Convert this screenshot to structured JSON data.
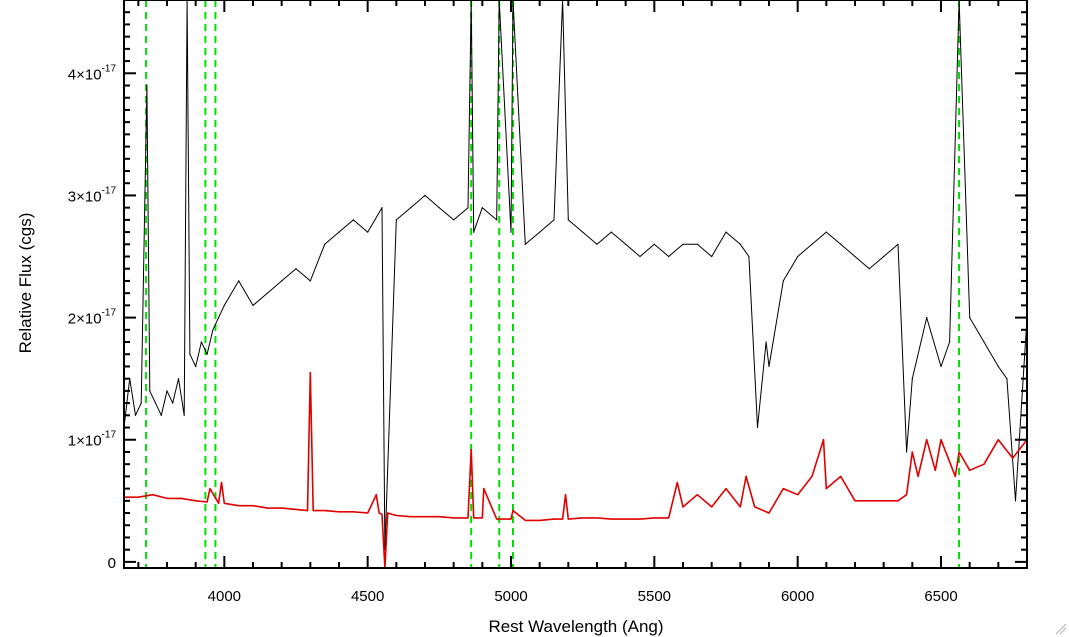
{
  "chart_data": {
    "type": "line",
    "xlabel": "Rest Wavelength (Ang)",
    "ylabel": "Relative Flux (cgs)",
    "xlim": [
      3650,
      6800
    ],
    "ylim": [
      -5e-19,
      4.6e-17
    ],
    "grid": false,
    "x_ticks": [
      {
        "value": 4000,
        "label": "4000"
      },
      {
        "value": 4500,
        "label": "4500"
      },
      {
        "value": 5000,
        "label": "5000"
      },
      {
        "value": 5500,
        "label": "5500"
      },
      {
        "value": 6000,
        "label": "6000"
      },
      {
        "value": 6500,
        "label": "6500"
      }
    ],
    "y_ticks": [
      {
        "value": 0,
        "label": "0",
        "exp": ""
      },
      {
        "value": 1e-17,
        "label": "1×10",
        "exp": "-17"
      },
      {
        "value": 2e-17,
        "label": "2×10",
        "exp": "-17"
      },
      {
        "value": 3e-17,
        "label": "3×10",
        "exp": "-17"
      },
      {
        "value": 4e-17,
        "label": "4×10",
        "exp": "-17"
      }
    ],
    "vertical_lines": [
      {
        "x": 3727,
        "color": "#00e000",
        "style": "dashed"
      },
      {
        "x": 3934,
        "color": "#00e000",
        "style": "dashed"
      },
      {
        "x": 3969,
        "color": "#00e000",
        "style": "dashed"
      },
      {
        "x": 4861,
        "color": "#00e000",
        "style": "dashed"
      },
      {
        "x": 4959,
        "color": "#00e000",
        "style": "dashed"
      },
      {
        "x": 5007,
        "color": "#00e000",
        "style": "dashed"
      },
      {
        "x": 6563,
        "color": "#00e000",
        "style": "dashed"
      }
    ],
    "series": [
      {
        "color": "#000000",
        "x": [
          3650,
          3670,
          3690,
          3710,
          3730,
          3740,
          3760,
          3780,
          3800,
          3820,
          3840,
          3860,
          3870,
          3880,
          3900,
          3920,
          3940,
          3960,
          3980,
          4000,
          4050,
          4100,
          4150,
          4200,
          4250,
          4300,
          4350,
          4400,
          4450,
          4500,
          4550,
          4560,
          4600,
          4650,
          4700,
          4750,
          4800,
          4850,
          4861,
          4870,
          4900,
          4950,
          4959,
          5000,
          5007,
          5050,
          5100,
          5150,
          5180,
          5200,
          5250,
          5300,
          5350,
          5400,
          5450,
          5500,
          5550,
          5600,
          5650,
          5700,
          5750,
          5800,
          5830,
          5860,
          5890,
          5900,
          5950,
          6000,
          6050,
          6100,
          6150,
          6200,
          6250,
          6300,
          6350,
          6380,
          6400,
          6450,
          6500,
          6530,
          6563,
          6600,
          6650,
          6700,
          6730,
          6760,
          6800
        ],
        "y": [
          1.1e-17,
          1.5e-17,
          1.2e-17,
          1.3e-17,
          3.9e-17,
          1.4e-17,
          1.3e-17,
          1.2e-17,
          1.4e-17,
          1.3e-17,
          1.5e-17,
          1.2e-17,
          4.6e-17,
          1.7e-17,
          1.6e-17,
          1.8e-17,
          1.7e-17,
          1.9e-17,
          2e-17,
          2.1e-17,
          2.3e-17,
          2.1e-17,
          2.2e-17,
          2.3e-17,
          2.4e-17,
          2.3e-17,
          2.6e-17,
          2.7e-17,
          2.8e-17,
          2.7e-17,
          2.9e-17,
          1e-18,
          2.8e-17,
          2.9e-17,
          3e-17,
          2.9e-17,
          2.8e-17,
          2.9e-17,
          4.6e-17,
          2.7e-17,
          2.9e-17,
          2.8e-17,
          4.6e-17,
          2.7e-17,
          4.6e-17,
          2.6e-17,
          2.7e-17,
          2.8e-17,
          4.6e-17,
          2.8e-17,
          2.7e-17,
          2.6e-17,
          2.7e-17,
          2.6e-17,
          2.5e-17,
          2.6e-17,
          2.5e-17,
          2.6e-17,
          2.6e-17,
          2.5e-17,
          2.7e-17,
          2.6e-17,
          2.5e-17,
          1.1e-17,
          1.8e-17,
          1.6e-17,
          2.3e-17,
          2.5e-17,
          2.6e-17,
          2.7e-17,
          2.6e-17,
          2.5e-17,
          2.4e-17,
          2.5e-17,
          2.6e-17,
          9e-18,
          1.5e-17,
          2e-17,
          1.6e-17,
          1.8e-17,
          4.6e-17,
          2e-17,
          1.8e-17,
          1.6e-17,
          1.5e-17,
          5e-18,
          2e-17
        ]
      },
      {
        "color": "#e00000",
        "x": [
          3650,
          3700,
          3750,
          3800,
          3850,
          3900,
          3940,
          3950,
          3980,
          3990,
          4000,
          4050,
          4100,
          4150,
          4200,
          4250,
          4290,
          4300,
          4310,
          4350,
          4400,
          4450,
          4500,
          4530,
          4540,
          4550,
          4560,
          4570,
          4600,
          4650,
          4700,
          4750,
          4800,
          4850,
          4861,
          4870,
          4900,
          4905,
          4950,
          5000,
          5007,
          5050,
          5100,
          5150,
          5180,
          5190,
          5200,
          5250,
          5300,
          5350,
          5400,
          5450,
          5500,
          5550,
          5580,
          5600,
          5650,
          5700,
          5750,
          5800,
          5820,
          5850,
          5900,
          5950,
          6000,
          6050,
          6090,
          6100,
          6150,
          6200,
          6250,
          6300,
          6350,
          6380,
          6400,
          6420,
          6450,
          6480,
          6500,
          6550,
          6563,
          6600,
          6650,
          6700,
          6750,
          6800
        ],
        "y": [
          5.3e-18,
          5.3e-18,
          5.5e-18,
          5.2e-18,
          5.2e-18,
          5e-18,
          4.9e-18,
          6e-18,
          4.8e-18,
          6.5e-18,
          4.8e-18,
          4.6e-18,
          4.6e-18,
          4.4e-18,
          4.4e-18,
          4.3e-18,
          4.2e-18,
          1.55e-17,
          4.2e-18,
          4.2e-18,
          4.1e-18,
          4.1e-18,
          4e-18,
          5.5e-18,
          4e-18,
          3.9e-18,
          -5e-19,
          4e-18,
          3.8e-18,
          3.7e-18,
          3.7e-18,
          3.7e-18,
          3.6e-18,
          3.6e-18,
          9.2e-18,
          3.6e-18,
          3.6e-18,
          6e-18,
          3.5e-18,
          3.5e-18,
          4.2e-18,
          3.4e-18,
          3.4e-18,
          3.5e-18,
          3.5e-18,
          5.5e-18,
          3.5e-18,
          3.6e-18,
          3.6e-18,
          3.5e-18,
          3.5e-18,
          3.5e-18,
          3.6e-18,
          3.6e-18,
          6.5e-18,
          4.5e-18,
          5.5e-18,
          4.5e-18,
          6e-18,
          4.5e-18,
          7e-18,
          4.5e-18,
          4e-18,
          6e-18,
          5.5e-18,
          7e-18,
          1e-17,
          6e-18,
          7e-18,
          5e-18,
          5e-18,
          5e-18,
          5e-18,
          5.5e-18,
          9e-18,
          7e-18,
          1e-17,
          7.5e-18,
          1e-17,
          7e-18,
          9e-18,
          7.5e-18,
          8e-18,
          1e-17,
          8.5e-18,
          1e-17
        ]
      }
    ]
  }
}
